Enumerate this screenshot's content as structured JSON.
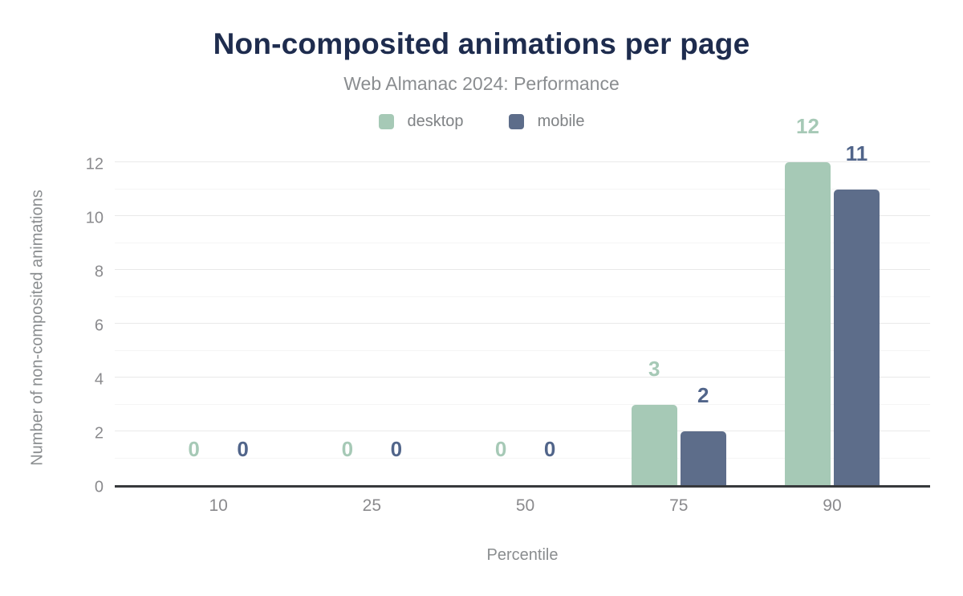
{
  "chart_data": {
    "type": "bar",
    "title": "Non-composited animations per page",
    "subtitle": "Web Almanac 2024: Performance",
    "xlabel": "Percentile",
    "ylabel": "Number of non-composited animations",
    "categories": [
      "10",
      "25",
      "50",
      "75",
      "90"
    ],
    "series": [
      {
        "name": "desktop",
        "values": [
          0,
          0,
          0,
          3,
          12
        ],
        "color": "#a6c9b6",
        "label_color": "#a6c9b6"
      },
      {
        "name": "mobile",
        "values": [
          0,
          0,
          0,
          2,
          11
        ],
        "color": "#5d6d8a",
        "label_color": "#51658a"
      }
    ],
    "ylim": [
      0,
      12
    ],
    "yticks": [
      0,
      2,
      4,
      6,
      8,
      10,
      12
    ],
    "grid": "horizontal-on",
    "legend_position": "top"
  },
  "colors": {
    "title": "#1e2c4e",
    "subtitle": "#8a8d90",
    "axis_text": "#8a8d8f",
    "gridline_major": "#e9e9e9",
    "gridline_minor": "#f5f5f5",
    "baseline": "#37393c",
    "background": "#ffffff"
  }
}
